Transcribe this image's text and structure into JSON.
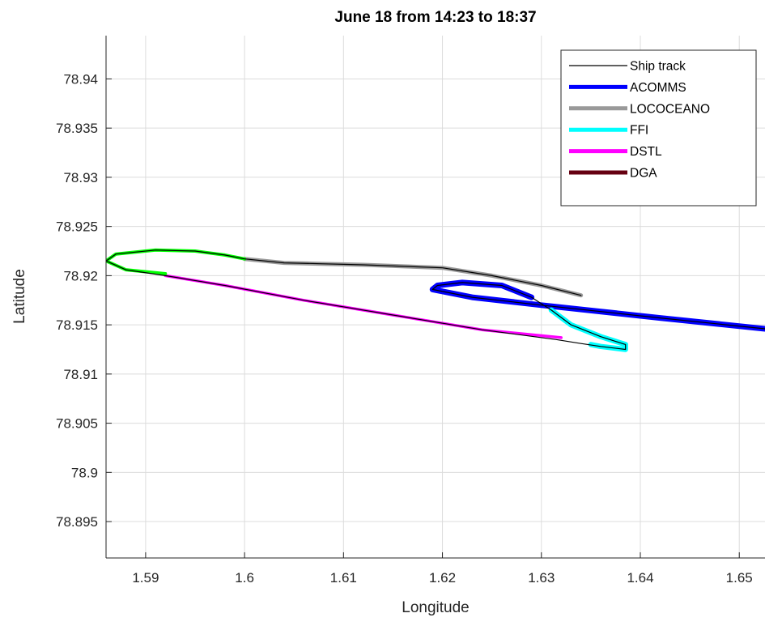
{
  "chart_data": {
    "type": "line",
    "title": "June 18 from 14:23 to 18:37",
    "xlabel": "Longitude",
    "ylabel": "Latitude",
    "xlim": [
      1.586,
      1.6526
    ],
    "ylim": [
      78.8913,
      78.9444
    ],
    "xticks": [
      1.59,
      1.6,
      1.61,
      1.62,
      1.63,
      1.64,
      1.65
    ],
    "xtick_labels": [
      "1.59",
      "1.6",
      "1.61",
      "1.62",
      "1.63",
      "1.64",
      "1.65"
    ],
    "yticks": [
      78.895,
      78.9,
      78.905,
      78.91,
      78.915,
      78.92,
      78.925,
      78.93,
      78.935,
      78.94
    ],
    "ytick_labels": [
      "78.895",
      "78.9",
      "78.905",
      "78.91",
      "78.915",
      "78.92",
      "78.925",
      "78.93",
      "78.935",
      "78.94"
    ],
    "grid": true,
    "legend_position": "top-right",
    "series": [
      {
        "name": "Ship track",
        "color": "#000000",
        "x": [
          1.6526,
          1.642,
          1.63,
          1.623,
          1.619,
          1.6195,
          1.622,
          1.626,
          1.629,
          1.631,
          1.633,
          1.636,
          1.6385,
          1.6385,
          1.636,
          1.634,
          1.6315,
          1.624,
          1.615,
          1.606,
          1.598,
          1.592,
          1.588,
          1.586,
          1.587,
          1.591,
          1.595,
          1.598,
          1.6,
          1.604,
          1.612,
          1.62,
          1.625,
          1.63,
          1.634
        ],
        "y": [
          78.9146,
          78.9157,
          78.917,
          78.9178,
          78.9186,
          78.919,
          78.9193,
          78.919,
          78.9178,
          78.9165,
          78.915,
          78.9138,
          78.913,
          78.9125,
          78.9128,
          78.9131,
          78.9135,
          78.9145,
          78.916,
          78.9175,
          78.919,
          78.92,
          78.9206,
          78.9215,
          78.9222,
          78.9226,
          78.9225,
          78.9221,
          78.9217,
          78.9213,
          78.9211,
          78.9208,
          78.92,
          78.919,
          78.918
        ]
      },
      {
        "name": "ACOMMS",
        "color": "#0000ff",
        "x": [
          1.6526,
          1.642,
          1.63,
          1.623,
          1.619,
          1.6195,
          1.622,
          1.626,
          1.629
        ],
        "y": [
          78.9146,
          78.9157,
          78.917,
          78.9178,
          78.9186,
          78.919,
          78.9193,
          78.919,
          78.9178
        ]
      },
      {
        "name": "LOCOCEANO",
        "color": "#999999",
        "x": [
          1.6,
          1.604,
          1.612,
          1.62,
          1.625,
          1.63,
          1.634
        ],
        "y": [
          78.9217,
          78.9213,
          78.9211,
          78.9208,
          78.92,
          78.919,
          78.918
        ]
      },
      {
        "name": "FFI",
        "color": "#00ffff",
        "x": [
          1.631,
          1.633,
          1.636,
          1.6385,
          1.6385,
          1.636,
          1.635
        ],
        "y": [
          78.9165,
          78.915,
          78.9138,
          78.913,
          78.9125,
          78.9128,
          78.913
        ]
      },
      {
        "name": "DSTL",
        "color": "#ff00ff",
        "x": [
          1.632,
          1.624,
          1.615,
          1.606,
          1.598,
          1.592
        ],
        "y": [
          78.9137,
          78.9145,
          78.916,
          78.9175,
          78.919,
          78.92
        ]
      },
      {
        "name": "DGA",
        "color": "#660011",
        "x": [],
        "y": []
      },
      {
        "name": "",
        "color": "#00ff00",
        "x": [
          1.592,
          1.588,
          1.586,
          1.587,
          1.591,
          1.595,
          1.598,
          1.6
        ],
        "y": [
          78.9202,
          78.9206,
          78.9215,
          78.9222,
          78.9226,
          78.9225,
          78.9221,
          78.9217
        ]
      }
    ]
  }
}
